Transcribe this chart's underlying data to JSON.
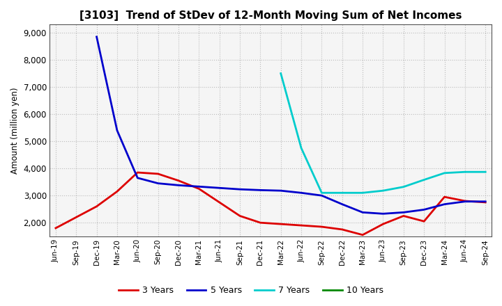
{
  "title": "[3103]  Trend of StDev of 12-Month Moving Sum of Net Incomes",
  "ylabel": "Amount (million yen)",
  "background_color": "#ffffff",
  "plot_bg_color": "#f5f5f5",
  "grid_color": "#bbbbbb",
  "ylim": [
    1500,
    9300
  ],
  "yticks": [
    2000,
    3000,
    4000,
    5000,
    6000,
    7000,
    8000,
    9000
  ],
  "x_labels": [
    "Jun-19",
    "Sep-19",
    "Dec-19",
    "Mar-20",
    "Jun-20",
    "Sep-20",
    "Dec-20",
    "Mar-21",
    "Jun-21",
    "Sep-21",
    "Dec-21",
    "Mar-22",
    "Jun-22",
    "Sep-22",
    "Dec-22",
    "Mar-23",
    "Jun-23",
    "Sep-23",
    "Dec-23",
    "Mar-24",
    "Jun-24",
    "Sep-24"
  ],
  "series": {
    "3 Years": {
      "color": "#dd0000",
      "linewidth": 2.0,
      "data_x": [
        0,
        1,
        2,
        3,
        4,
        5,
        6,
        7,
        8,
        9,
        10,
        11,
        12,
        13,
        14,
        15,
        16,
        17,
        18,
        19,
        20,
        21
      ],
      "data_y": [
        1800,
        2200,
        2600,
        3150,
        3850,
        3800,
        3550,
        3250,
        2750,
        2250,
        2000,
        1950,
        1900,
        1850,
        1750,
        1550,
        1950,
        2250,
        2050,
        2950,
        2800,
        2750
      ]
    },
    "5 Years": {
      "color": "#0000cc",
      "linewidth": 2.0,
      "data_x": [
        2,
        3,
        4,
        5,
        6,
        7,
        8,
        9,
        10,
        11,
        12,
        13,
        14,
        15,
        16,
        17,
        18,
        19,
        20,
        21
      ],
      "data_y": [
        8850,
        5400,
        3650,
        3450,
        3380,
        3330,
        3280,
        3230,
        3200,
        3180,
        3100,
        3000,
        2680,
        2380,
        2330,
        2380,
        2480,
        2680,
        2780,
        2780
      ]
    },
    "7 Years": {
      "color": "#00cccc",
      "linewidth": 2.0,
      "data_x": [
        11,
        12,
        13,
        14,
        15,
        16,
        17,
        18,
        19,
        20,
        21
      ],
      "data_y": [
        7500,
        4750,
        3100,
        3100,
        3100,
        3180,
        3320,
        3580,
        3830,
        3870,
        3870
      ]
    },
    "10 Years": {
      "color": "#008800",
      "linewidth": 2.0,
      "data_x": [],
      "data_y": []
    }
  },
  "legend_labels": [
    "3 Years",
    "5 Years",
    "7 Years",
    "10 Years"
  ],
  "legend_colors": [
    "#dd0000",
    "#0000cc",
    "#00cccc",
    "#008800"
  ]
}
